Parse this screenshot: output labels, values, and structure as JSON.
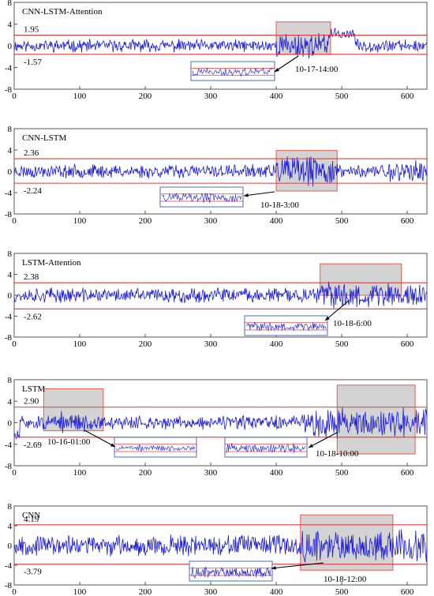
{
  "chart_data": [
    {
      "type": "line",
      "title": "CNN-LSTM-Attention",
      "xlim": [
        0,
        630
      ],
      "ylim": [
        -8,
        8
      ],
      "xticks": [
        0,
        100,
        200,
        300,
        400,
        500,
        600
      ],
      "yticks": [
        -8,
        -4,
        0,
        4,
        8
      ],
      "threshold_upper": 1.95,
      "threshold_lower": -1.57,
      "threshold_upper_label": "1.95",
      "threshold_lower_label": "-1.57",
      "anomaly_regions": [
        {
          "x_start": 400,
          "x_end": 483,
          "y_low": -1.57,
          "y_high": 4.4
        }
      ],
      "annotations": [
        {
          "text": "10-17-14:00"
        }
      ],
      "series": [
        {
          "color": "#1a1adb",
          "seed": 11,
          "base_amp": 0.9,
          "segments": [
            {
              "x_start": 400,
              "x_end": 483,
              "amp": 1.8
            },
            {
              "x_start": 480,
              "x_end": 520,
              "amp": 0.8,
              "offset": 2.2
            }
          ]
        }
      ]
    },
    {
      "type": "line",
      "title": "CNN-LSTM",
      "xlim": [
        0,
        630
      ],
      "ylim": [
        -8,
        8
      ],
      "xticks": [
        0,
        100,
        200,
        300,
        400,
        500,
        600
      ],
      "yticks": [
        -8,
        -4,
        0,
        4,
        8
      ],
      "threshold_upper": 2.36,
      "threshold_lower": -2.24,
      "threshold_upper_label": "2.36",
      "threshold_lower_label": "-2.24",
      "anomaly_regions": [
        {
          "x_start": 400,
          "x_end": 493,
          "y_low": -3.7,
          "y_high": 3.9
        }
      ],
      "annotations": [
        {
          "text": "10-18-3:00"
        }
      ],
      "series": [
        {
          "color": "#1a1adb",
          "seed": 23,
          "base_amp": 1.0,
          "segments": [
            {
              "x_start": 400,
              "x_end": 493,
              "amp": 2.2
            },
            {
              "x_start": 560,
              "x_end": 630,
              "amp": 1.6
            }
          ]
        }
      ]
    },
    {
      "type": "line",
      "title": "LSTM-Attention",
      "xlim": [
        0,
        630
      ],
      "ylim": [
        -8,
        8
      ],
      "xticks": [
        0,
        100,
        200,
        300,
        400,
        500,
        600
      ],
      "yticks": [
        -8,
        -4,
        0,
        4,
        8
      ],
      "threshold_upper": 2.38,
      "threshold_lower": -2.62,
      "threshold_upper_label": "2.38",
      "threshold_lower_label": "-2.62",
      "anomaly_regions": [
        {
          "x_start": 467,
          "x_end": 591,
          "y_low": 0.0,
          "y_high": 6.0
        }
      ],
      "annotations": [
        {
          "text": "10-18-6:00"
        }
      ],
      "series": [
        {
          "color": "#1a1adb",
          "seed": 37,
          "base_amp": 1.1,
          "segments": [
            {
              "x_start": 467,
              "x_end": 630,
              "amp": 2.0
            }
          ]
        }
      ]
    },
    {
      "type": "line",
      "title": "LSTM",
      "xlim": [
        0,
        630
      ],
      "ylim": [
        -8,
        8
      ],
      "xticks": [
        0,
        100,
        200,
        300,
        400,
        500,
        600
      ],
      "yticks": [
        -8,
        -4,
        0,
        4,
        8
      ],
      "threshold_upper": 2.9,
      "threshold_lower": -2.69,
      "threshold_upper_label": "2.90",
      "threshold_lower_label": "-2.69",
      "anomaly_regions": [
        {
          "x_start": 45,
          "x_end": 136,
          "y_low": -1.5,
          "y_high": 6.3
        },
        {
          "x_start": 493,
          "x_end": 612,
          "y_low": -5.8,
          "y_high": 7.0
        }
      ],
      "annotations": [
        {
          "text": "10-16-01:00"
        },
        {
          "text": "10-18-10:00"
        }
      ],
      "series": [
        {
          "color": "#1a1adb",
          "seed": 51,
          "base_amp": 1.0,
          "segments": [
            {
              "x_start": 0,
              "x_end": 8,
              "amp": 1.0,
              "offset": -2.5
            },
            {
              "x_start": 70,
              "x_end": 110,
              "amp": 1.6
            },
            {
              "x_start": 440,
              "x_end": 630,
              "amp": 2.2
            }
          ]
        }
      ]
    },
    {
      "type": "line",
      "title": "CNN",
      "xlim": [
        0,
        630
      ],
      "ylim": [
        -8,
        8
      ],
      "xticks": [
        0,
        100,
        200,
        300,
        400,
        500,
        600
      ],
      "yticks": [
        -8,
        -4,
        0,
        4,
        8
      ],
      "threshold_upper": 4.19,
      "threshold_lower": -3.79,
      "threshold_upper_label": "4.19",
      "threshold_lower_label": "-3.79",
      "anomaly_regions": [
        {
          "x_start": 437,
          "x_end": 578,
          "y_low": -5.0,
          "y_high": 6.2
        }
      ],
      "annotations": [
        {
          "text": "10-18-12:00"
        }
      ],
      "series": [
        {
          "color": "#1a1adb",
          "seed": 67,
          "base_amp": 1.6,
          "segments": [
            {
              "x_start": 437,
              "x_end": 630,
              "amp": 2.4
            }
          ]
        }
      ]
    }
  ],
  "colors": {
    "series": "#1a1adb",
    "threshold": "#e03c3c",
    "anomaly_fill": "#d3d3d3",
    "anomaly_border": "#e55a4a",
    "inset_border": "#4a6fb5"
  }
}
